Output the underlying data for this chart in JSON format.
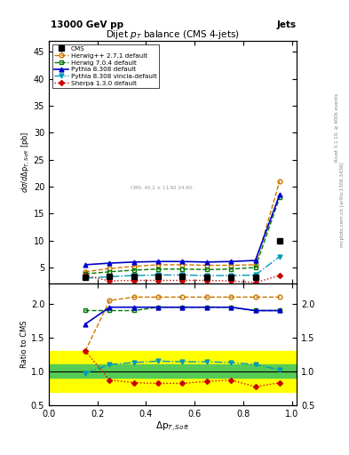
{
  "title": "Dijet $p_T$ balance (CMS 4-jets)",
  "header_left": "13000 GeV pp",
  "header_right": "Jets",
  "xlabel": "$\\Delta{\\rm p}_{T,Soft}$",
  "ylabel_main": "$d\\sigma/d\\Delta{\\rm p}_{T,Soft}$ [pb]",
  "ylabel_ratio": "Ratio to CMS",
  "right_label_top": "Rivet 3.1.10, ≥ 400k events",
  "right_label_bot": "mcplots.cern.ch [arXiv:1306.3436]",
  "watermark": "CMS: 40.2 ± 11.92 24.60.",
  "x": [
    0.15,
    0.25,
    0.35,
    0.45,
    0.55,
    0.65,
    0.75,
    0.85,
    0.95
  ],
  "cms_y": [
    3.2,
    3.3,
    3.4,
    3.3,
    3.3,
    3.2,
    3.1,
    3.2,
    10.0
  ],
  "cms_yerr": [
    0.25,
    0.2,
    0.2,
    0.2,
    0.2,
    0.2,
    0.2,
    0.25,
    0.5
  ],
  "herwig271_y": [
    4.2,
    4.8,
    5.2,
    5.5,
    5.5,
    5.4,
    5.4,
    5.5,
    21.0
  ],
  "herwig704_y": [
    3.8,
    4.2,
    4.5,
    4.7,
    4.7,
    4.6,
    4.7,
    5.0,
    18.0
  ],
  "pythia8308_y": [
    5.5,
    5.8,
    6.0,
    6.1,
    6.1,
    6.0,
    6.1,
    6.3,
    18.5
  ],
  "pythia8308v_y": [
    3.0,
    3.3,
    3.5,
    3.6,
    3.6,
    3.5,
    3.5,
    3.6,
    7.0
  ],
  "sherpa130_y": [
    3.5,
    2.5,
    2.6,
    2.6,
    2.6,
    2.6,
    2.5,
    2.2,
    3.5
  ],
  "herwig271_ratio": [
    1.3,
    2.05,
    2.1,
    2.1,
    2.1,
    2.1,
    2.1,
    2.1,
    2.1
  ],
  "herwig704_ratio": [
    1.9,
    1.9,
    1.9,
    1.95,
    1.95,
    1.95,
    1.95,
    1.9,
    1.9
  ],
  "pythia8308_ratio": [
    1.7,
    1.95,
    1.95,
    1.95,
    1.95,
    1.95,
    1.95,
    1.9,
    1.9
  ],
  "pythia8308v_ratio": [
    0.97,
    1.1,
    1.13,
    1.15,
    1.14,
    1.14,
    1.13,
    1.1,
    1.02
  ],
  "sherpa130_ratio": [
    1.3,
    0.87,
    0.83,
    0.82,
    0.82,
    0.85,
    0.87,
    0.77,
    0.83
  ],
  "cms_color": "#000000",
  "herwig271_color": "#cc7700",
  "herwig704_color": "#007700",
  "pythia8308_color": "#0000cc",
  "pythia8308v_color": "#0099bb",
  "sherpa130_color": "#cc0000",
  "green_band_lo": 0.9,
  "green_band_hi": 1.1,
  "yellow_band_lo": 0.7,
  "yellow_band_hi": 1.3,
  "ylim_main": [
    2.0,
    47.0
  ],
  "yticks_main": [
    5,
    10,
    15,
    20,
    25,
    30,
    35,
    40,
    45
  ],
  "ylim_ratio": [
    0.5,
    2.3
  ],
  "yticks_ratio": [
    0.5,
    1.0,
    1.5,
    2.0
  ],
  "xlim": [
    0.0,
    1.02
  ]
}
